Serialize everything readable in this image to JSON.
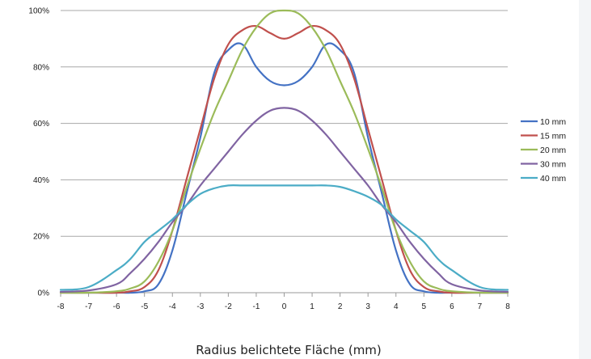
{
  "chart_data": {
    "type": "line",
    "title": "",
    "xlabel": "Radius belichtete Fläche (mm)",
    "ylabel": "",
    "xlim": [
      -8,
      8
    ],
    "ylim": [
      0,
      100
    ],
    "x_ticks": [
      -8,
      -7,
      -6,
      -5,
      -4,
      -3,
      -2,
      -1,
      0,
      1,
      2,
      3,
      4,
      5,
      6,
      7,
      8
    ],
    "y_ticks": [
      0,
      20,
      40,
      60,
      80,
      100
    ],
    "y_tick_format": "percent",
    "grid": "horizontal",
    "legend_position": "right",
    "x": [
      -8,
      -7,
      -6,
      -5.5,
      -5,
      -4.5,
      -4,
      -3.5,
      -3,
      -2.5,
      -2,
      -1.5,
      -1,
      -0.5,
      0,
      0.5,
      1,
      1.5,
      2,
      2.5,
      3,
      3.5,
      4,
      4.5,
      5,
      5.5,
      6,
      7,
      8
    ],
    "series": [
      {
        "name": "10 mm",
        "color": "#4472c4",
        "values": [
          0,
          0,
          0,
          0,
          0.5,
          3,
          15,
          35,
          55,
          78,
          86,
          88,
          80,
          75,
          73.5,
          75,
          80,
          88,
          86,
          78,
          55,
          35,
          15,
          3,
          0.5,
          0,
          0,
          0,
          0
        ]
      },
      {
        "name": "15 mm",
        "color": "#c0504d",
        "values": [
          0,
          0,
          0,
          0.5,
          2,
          8,
          22,
          40,
          58,
          76,
          88,
          93,
          94.5,
          92,
          90,
          92,
          94.5,
          93,
          88,
          76,
          58,
          40,
          22,
          8,
          2,
          0.5,
          0,
          0,
          0
        ]
      },
      {
        "name": "20 mm",
        "color": "#9bbb59",
        "values": [
          0,
          0,
          0.5,
          1.5,
          4,
          11,
          22,
          37,
          51,
          64,
          75,
          86,
          94,
          99,
          100,
          99,
          94,
          86,
          75,
          64,
          51,
          37,
          22,
          11,
          4,
          1.5,
          0.5,
          0,
          0
        ]
      },
      {
        "name": "30 mm",
        "color": "#8064a2",
        "values": [
          0.3,
          0.8,
          3,
          7,
          12,
          18,
          25,
          31,
          38,
          44,
          50,
          56,
          61,
          64.5,
          65.5,
          64.5,
          61,
          56,
          50,
          44,
          38,
          31,
          25,
          18,
          12,
          7,
          3,
          0.8,
          0.3
        ]
      },
      {
        "name": "40 mm",
        "color": "#4bacc6",
        "values": [
          1,
          2,
          8,
          12,
          18,
          22,
          26,
          31,
          35,
          37,
          38,
          38,
          38,
          38,
          38,
          38,
          38,
          38,
          37.5,
          36,
          34,
          31,
          26,
          22,
          18,
          12,
          8,
          2,
          1
        ]
      }
    ]
  }
}
